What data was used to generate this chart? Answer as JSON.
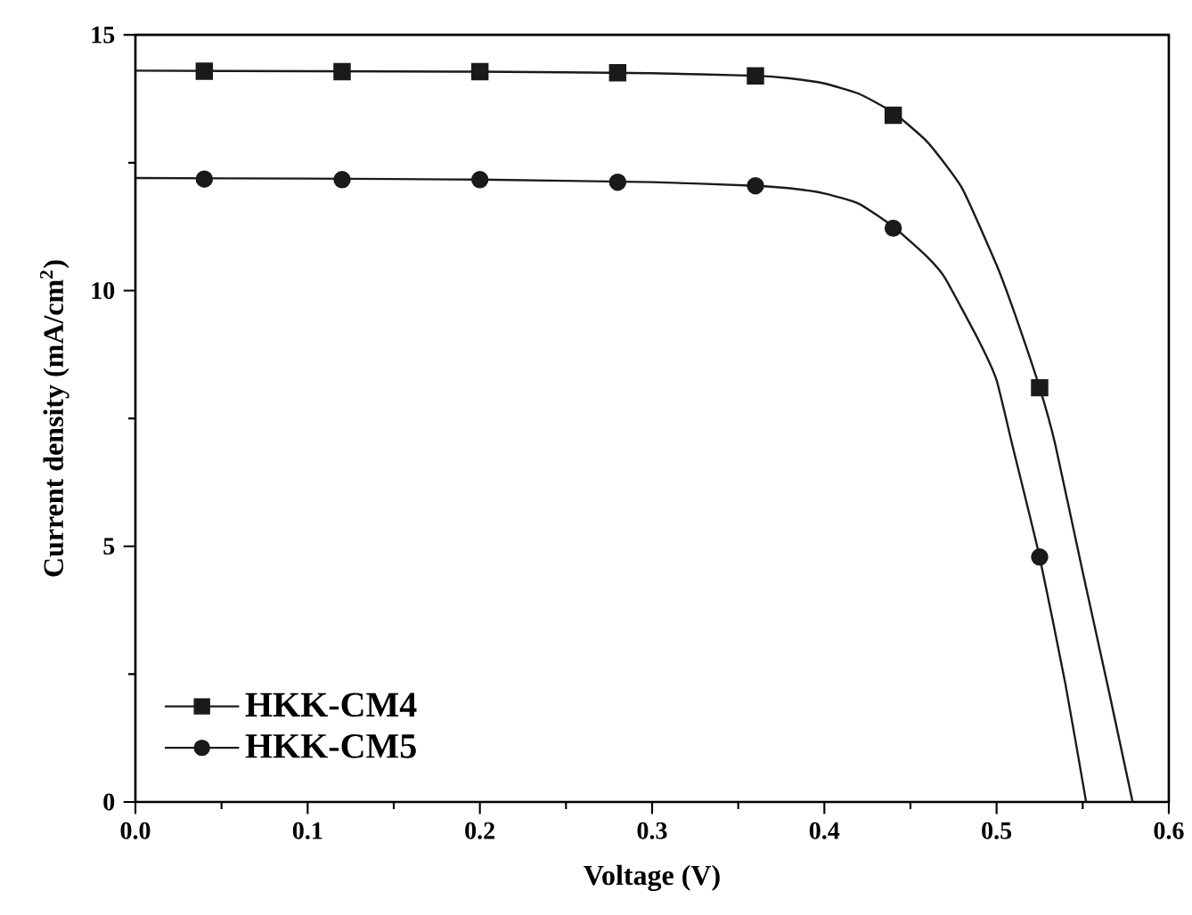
{
  "chart_data": {
    "type": "line",
    "xlabel": "Voltage (V)",
    "ylabel": "Current density (mA/cm$^{2}$)",
    "xlim": [
      0,
      0.6
    ],
    "xticks": [
      {
        "value": 0,
        "label": "0.0"
      },
      0.1,
      0.2,
      0.3,
      0.4,
      0.5,
      0.6
    ],
    "ylim": [
      0,
      15
    ],
    "yticks": [
      0,
      5,
      10,
      15
    ],
    "grid": false,
    "legend": "bottom left",
    "series": [
      {
        "name": "HKK-CM4",
        "type": "scatter",
        "marker": "square",
        "color": "#1a1a1a",
        "x": [
          0.04,
          0.12,
          0.2,
          0.28,
          0.36,
          0.44,
          0.525
        ],
        "values": [
          14.29,
          14.28,
          14.28,
          14.26,
          14.2,
          13.43,
          8.1
        ]
      },
      {
        "name": "HKK-CM5",
        "type": "scatter",
        "marker": "circle",
        "color": "#1a1a1a",
        "x": [
          0.04,
          0.12,
          0.2,
          0.28,
          0.36,
          0.44,
          0.525
        ],
        "values": [
          12.18,
          12.17,
          12.17,
          12.12,
          12.05,
          11.22,
          4.79
        ]
      },
      {
        "marker": "none",
        "color": "#1a1a1a",
        "x": [
          0,
          0.1,
          0.2,
          0.3,
          0.36,
          0.38,
          0.4,
          0.42,
          0.44,
          0.46,
          0.48,
          0.5,
          0.51,
          0.525,
          0.534,
          0.55,
          0.565,
          0.579
        ],
        "values": [
          14.3,
          14.29,
          14.28,
          14.25,
          14.2,
          14.15,
          14.05,
          13.85,
          13.48,
          12.9,
          12.0,
          10.5,
          9.6,
          8.1,
          7.0,
          4.5,
          2.2,
          0
        ]
      },
      {
        "marker": "none",
        "color": "#1a1a1a",
        "x": [
          0,
          0.1,
          0.2,
          0.3,
          0.36,
          0.38,
          0.4,
          0.42,
          0.44,
          0.46,
          0.47,
          0.49,
          0.5,
          0.509,
          0.525,
          0.54,
          0.552
        ],
        "values": [
          12.2,
          12.19,
          12.17,
          12.12,
          12.05,
          12.0,
          11.9,
          11.7,
          11.25,
          10.65,
          10.25,
          9.0,
          8.25,
          7.0,
          4.79,
          2.3,
          0
        ]
      }
    ]
  }
}
